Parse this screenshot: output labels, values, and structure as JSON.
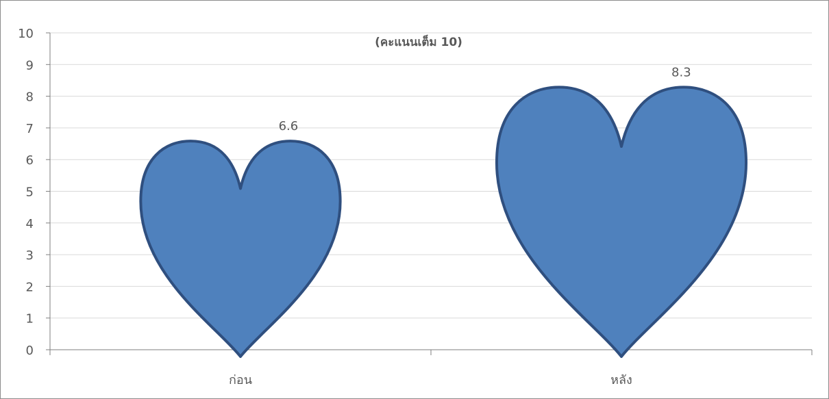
{
  "chart_data": {
    "type": "bar",
    "title": "(คะแนนเต็ม 10)",
    "categories": [
      "ก่อน",
      "หลัง"
    ],
    "values": [
      6.6,
      8.3
    ],
    "value_labels": [
      "6.6",
      "8.3"
    ],
    "ylim": [
      0,
      10
    ],
    "y_ticks": [
      "0",
      "1",
      "2",
      "3",
      "4",
      "5",
      "6",
      "7",
      "8",
      "9",
      "10"
    ],
    "xlabel": "",
    "ylabel": "",
    "grid": true,
    "marker_shape": "heart",
    "colors": {
      "fill": "#4f81bd",
      "stroke": "#2f4f7f",
      "grid": "#d9d9d9",
      "axis": "#7f7f7f",
      "text": "#595959"
    }
  }
}
